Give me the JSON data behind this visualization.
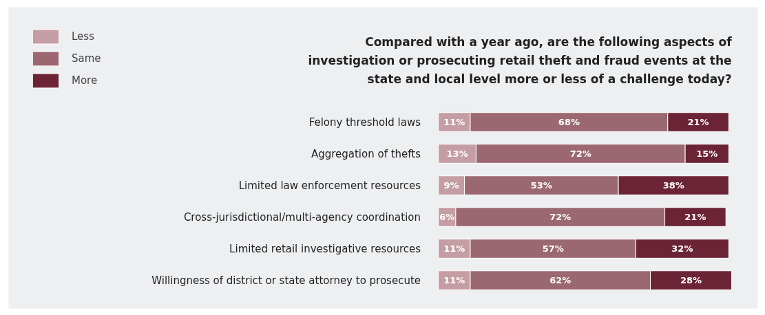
{
  "chart_data": {
    "type": "bar",
    "orientation": "horizontal",
    "stacked": true,
    "legend": "top left",
    "grid": false,
    "title": "Compared with a year ago, are the following aspects of\ninvestigation or prosecuting retail theft and fraud events at the\nstate and local level more or less of a challenge today?",
    "categories": [
      "Felony threshold laws",
      "Aggregation of thefts",
      "Limited law enforcement resources",
      "Cross-jurisdictional/multi-agency coordination",
      "Limited retail investigative resources",
      "Willingness of district or state attorney to prosecute"
    ],
    "series": [
      {
        "name": "Less",
        "color": "#c49ea4",
        "values": [
          11,
          13,
          9,
          6,
          11,
          11
        ],
        "value_labels": [
          "11%",
          "13%",
          "9%",
          "6%",
          "11%",
          "11%"
        ]
      },
      {
        "name": "Same",
        "color": "#9b6872",
        "values": [
          68,
          72,
          53,
          72,
          57,
          62
        ],
        "value_labels": [
          "68%",
          "72%",
          "53%",
          "72%",
          "57%",
          "62%"
        ]
      },
      {
        "name": "More",
        "color": "#6b2436",
        "values": [
          21,
          15,
          38,
          21,
          32,
          28
        ],
        "value_labels": [
          "21%",
          "15%",
          "38%",
          "21%",
          "32%",
          "28%"
        ]
      }
    ]
  }
}
